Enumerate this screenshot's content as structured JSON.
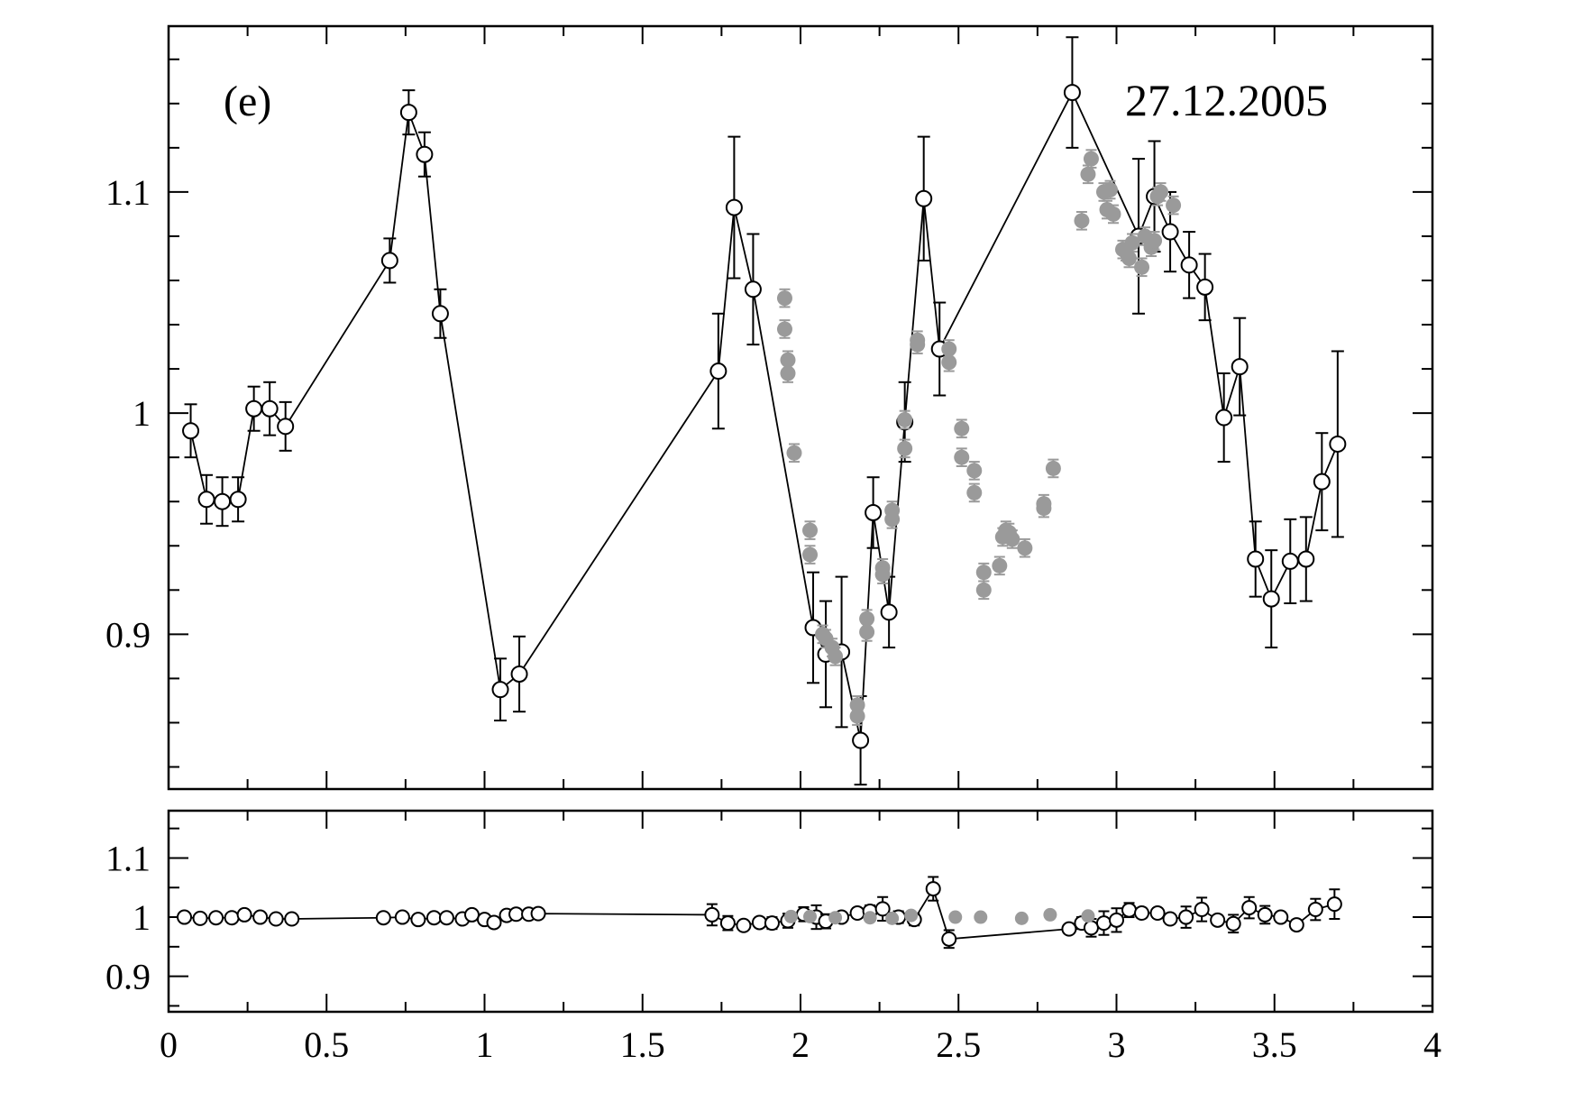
{
  "figure": {
    "panel_label": "(e)",
    "date_label": "27.12.2005"
  },
  "colors": {
    "line": "#000000",
    "open_marker": "#000000",
    "gray_marker": "#9a9a9a",
    "background": "#ffffff"
  },
  "chart_data": [
    {
      "type": "scatter",
      "panel": "top",
      "title": "",
      "xlabel": "",
      "ylabel": "",
      "xlim": [
        0,
        4
      ],
      "ylim": [
        0.83,
        1.175
      ],
      "grid": false,
      "x_ticks": [
        {
          "v": 0,
          "label": "0"
        },
        {
          "v": 0.5,
          "label": "0.5"
        },
        {
          "v": 1,
          "label": "1"
        },
        {
          "v": 1.5,
          "label": "1.5"
        },
        {
          "v": 2,
          "label": "2"
        },
        {
          "v": 2.5,
          "label": "2.5"
        },
        {
          "v": 3,
          "label": "3"
        },
        {
          "v": 3.5,
          "label": "3.5"
        },
        {
          "v": 4,
          "label": "4"
        }
      ],
      "y_ticks": [
        {
          "v": 0.9,
          "label": "0.9"
        },
        {
          "v": 1.0,
          "label": "1"
        },
        {
          "v": 1.1,
          "label": "1.1"
        }
      ],
      "series": [
        {
          "style": "open-circle-line",
          "x": [
            0.07,
            0.12,
            0.17,
            0.22,
            0.27,
            0.32,
            0.37,
            0.7,
            0.76,
            0.81,
            0.86,
            1.05,
            1.11,
            1.74,
            1.79,
            1.85,
            2.04,
            2.08,
            2.13,
            2.19,
            2.23,
            2.28,
            2.33,
            2.39,
            2.44,
            2.86,
            3.07,
            3.12,
            3.17,
            3.23,
            3.28,
            3.34,
            3.39,
            3.44,
            3.49,
            3.55,
            3.6,
            3.65,
            3.7
          ],
          "y": [
            0.992,
            0.961,
            0.96,
            0.961,
            1.002,
            1.002,
            0.994,
            1.069,
            1.136,
            1.117,
            1.045,
            0.875,
            0.882,
            1.019,
            1.093,
            1.056,
            0.903,
            0.891,
            0.892,
            0.852,
            0.955,
            0.91,
            0.996,
            1.097,
            1.029,
            1.145,
            1.08,
            1.098,
            1.082,
            1.067,
            1.057,
            0.998,
            1.021,
            0.934,
            0.916,
            0.933,
            0.934,
            0.969,
            0.986
          ],
          "err": [
            0.012,
            0.011,
            0.011,
            0.01,
            0.01,
            0.012,
            0.011,
            0.01,
            0.01,
            0.01,
            0.011,
            0.014,
            0.017,
            0.026,
            0.032,
            0.025,
            0.025,
            0.024,
            0.034,
            0.02,
            0.016,
            0.016,
            0.018,
            0.028,
            0.021,
            0.025,
            0.035,
            0.025,
            0.018,
            0.015,
            0.015,
            0.02,
            0.022,
            0.017,
            0.022,
            0.019,
            0.019,
            0.022,
            0.042
          ]
        },
        {
          "style": "filled-gray",
          "x": [
            1.95,
            1.95,
            1.96,
            1.96,
            1.98,
            2.03,
            2.03,
            2.07,
            2.08,
            2.1,
            2.11,
            2.18,
            2.18,
            2.21,
            2.21,
            2.26,
            2.26,
            2.29,
            2.29,
            2.33,
            2.33,
            2.37,
            2.37,
            2.47,
            2.47,
            2.51,
            2.51,
            2.55,
            2.55,
            2.58,
            2.58,
            2.63,
            2.64,
            2.65,
            2.66,
            2.67,
            2.71,
            2.77,
            2.77,
            2.8,
            2.89,
            2.91,
            2.92,
            2.96,
            2.97,
            2.98,
            2.99,
            3.02,
            3.03,
            3.04,
            3.05,
            3.08,
            3.09,
            3.11,
            3.12,
            3.13,
            3.14,
            3.18
          ],
          "y": [
            1.052,
            1.038,
            1.024,
            1.018,
            0.982,
            0.947,
            0.936,
            0.9,
            0.898,
            0.894,
            0.89,
            0.868,
            0.863,
            0.907,
            0.901,
            0.93,
            0.927,
            0.956,
            0.952,
            0.997,
            0.984,
            1.033,
            1.031,
            1.029,
            1.023,
            0.993,
            0.98,
            0.974,
            0.964,
            0.928,
            0.92,
            0.931,
            0.944,
            0.947,
            0.946,
            0.943,
            0.939,
            0.959,
            0.957,
            0.975,
            1.087,
            1.108,
            1.115,
            1.1,
            1.092,
            1.101,
            1.09,
            1.074,
            1.073,
            1.07,
            1.077,
            1.066,
            1.08,
            1.075,
            1.078,
            1.098,
            1.1,
            1.094
          ],
          "err": [
            0.004,
            0.004,
            0.004,
            0.004,
            0.004,
            0.004,
            0.004,
            0.004,
            0.004,
            0.004,
            0.004,
            0.004,
            0.004,
            0.004,
            0.004,
            0.004,
            0.004,
            0.004,
            0.004,
            0.004,
            0.004,
            0.004,
            0.004,
            0.004,
            0.004,
            0.004,
            0.004,
            0.004,
            0.004,
            0.004,
            0.004,
            0.004,
            0.004,
            0.004,
            0.004,
            0.004,
            0.004,
            0.004,
            0.004,
            0.004,
            0.004,
            0.004,
            0.004,
            0.004,
            0.004,
            0.004,
            0.004,
            0.004,
            0.004,
            0.004,
            0.004,
            0.004,
            0.004,
            0.004,
            0.004,
            0.004,
            0.004,
            0.004
          ]
        }
      ]
    },
    {
      "type": "scatter",
      "panel": "bottom",
      "title": "",
      "xlabel": "",
      "ylabel": "",
      "xlim": [
        0,
        4
      ],
      "ylim": [
        0.84,
        1.18
      ],
      "grid": false,
      "x_ticks": [
        {
          "v": 0,
          "label": "0"
        },
        {
          "v": 0.5,
          "label": "0.5"
        },
        {
          "v": 1,
          "label": "1"
        },
        {
          "v": 1.5,
          "label": "1.5"
        },
        {
          "v": 2,
          "label": "2"
        },
        {
          "v": 2.5,
          "label": "2.5"
        },
        {
          "v": 3,
          "label": "3"
        },
        {
          "v": 3.5,
          "label": "3.5"
        },
        {
          "v": 4,
          "label": "4"
        }
      ],
      "y_ticks": [
        {
          "v": 0.9,
          "label": "0.9"
        },
        {
          "v": 1.0,
          "label": "1"
        },
        {
          "v": 1.1,
          "label": "1.1"
        }
      ],
      "series": [
        {
          "style": "open-circle-line",
          "x": [
            0.05,
            0.1,
            0.15,
            0.2,
            0.24,
            0.29,
            0.34,
            0.39,
            0.68,
            0.74,
            0.79,
            0.84,
            0.88,
            0.93,
            0.96,
            1.0,
            1.03,
            1.07,
            1.1,
            1.14,
            1.17,
            1.72,
            1.77,
            1.82,
            1.87,
            1.91,
            1.96,
            2.01,
            2.05,
            2.08,
            2.13,
            2.18,
            2.22,
            2.26,
            2.31,
            2.36,
            2.42,
            2.47,
            2.85,
            2.89,
            2.92,
            2.96,
            3.0,
            3.04,
            3.08,
            3.13,
            3.17,
            3.22,
            3.27,
            3.32,
            3.37,
            3.42,
            3.47,
            3.52,
            3.57,
            3.63,
            3.69
          ],
          "y": [
            1.0,
            0.998,
            0.999,
            0.999,
            1.004,
            1.0,
            0.997,
            0.997,
            0.999,
            1.0,
            0.996,
            0.999,
            0.999,
            0.997,
            1.004,
            0.996,
            0.991,
            1.003,
            1.005,
            1.005,
            1.006,
            1.004,
            0.99,
            0.986,
            0.991,
            0.99,
            0.994,
            1.005,
            1.0,
            0.993,
            1.0,
            1.007,
            1.01,
            1.014,
            1.0,
            0.996,
            1.048,
            0.963,
            0.98,
            0.99,
            0.982,
            0.99,
            0.995,
            1.012,
            1.007,
            1.007,
            0.997,
            1.0,
            1.013,
            0.995,
            0.989,
            1.016,
            1.004,
            1.0,
            0.987,
            1.013,
            1.022
          ],
          "err": [
            0.004,
            0.004,
            0.004,
            0.004,
            0.004,
            0.004,
            0.004,
            0.004,
            0.004,
            0.004,
            0.004,
            0.004,
            0.004,
            0.004,
            0.004,
            0.004,
            0.004,
            0.004,
            0.004,
            0.004,
            0.004,
            0.018,
            0.012,
            0.006,
            0.008,
            0.01,
            0.012,
            0.012,
            0.02,
            0.012,
            0.008,
            0.008,
            0.01,
            0.02,
            0.01,
            0.01,
            0.02,
            0.015,
            0.005,
            0.01,
            0.015,
            0.02,
            0.02,
            0.012,
            0.008,
            0.008,
            0.008,
            0.018,
            0.02,
            0.008,
            0.015,
            0.018,
            0.015,
            0.008,
            0.008,
            0.018,
            0.025
          ]
        },
        {
          "style": "filled-gray",
          "x": [
            1.97,
            2.03,
            2.11,
            2.22,
            2.29,
            2.35,
            2.49,
            2.57,
            2.7,
            2.79,
            2.91
          ],
          "y": [
            1.001,
            1.001,
            0.999,
            0.999,
            0.998,
            1.003,
            1.0,
            1.0,
            0.998,
            1.004,
            1.002
          ],
          "err": [
            0.004,
            0.004,
            0.004,
            0.004,
            0.004,
            0.004,
            0.004,
            0.004,
            0.004,
            0.004,
            0.004
          ]
        }
      ]
    }
  ]
}
